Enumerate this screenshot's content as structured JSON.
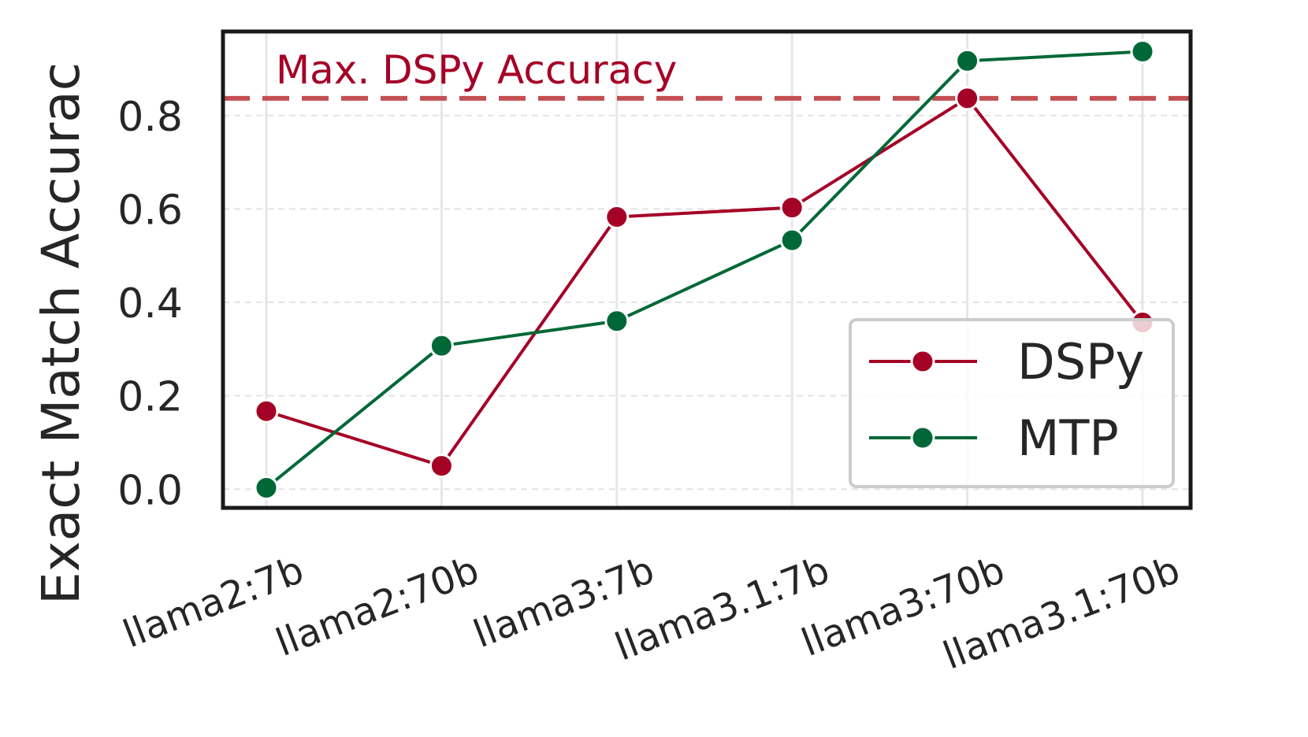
{
  "chart_data": {
    "type": "line",
    "ylabel": "Exact Match Accurac",
    "categories": [
      "llama2:7b",
      "llama2:70b",
      "llama3:7b",
      "llama3.1:7b",
      "llama3:70b",
      "llama3.1:70b"
    ],
    "yticks": [
      "0.0",
      "0.2",
      "0.4",
      "0.6",
      "0.8"
    ],
    "ylim": [
      -0.04,
      0.98
    ],
    "grid": true,
    "legend_position": "lower-right",
    "series": [
      {
        "name": "DSPy",
        "color": "#A50026",
        "values": [
          0.167,
          0.05,
          0.583,
          0.603,
          0.837,
          0.357
        ]
      },
      {
        "name": "MTP",
        "color": "#006837",
        "values": [
          0.003,
          0.307,
          0.36,
          0.533,
          0.917,
          0.937
        ]
      }
    ],
    "reference_line": {
      "label": "Max. DSPy Accuracy",
      "value": 0.837,
      "color": "#C44E52",
      "text_color": "#A50026",
      "style": "dashed"
    }
  }
}
